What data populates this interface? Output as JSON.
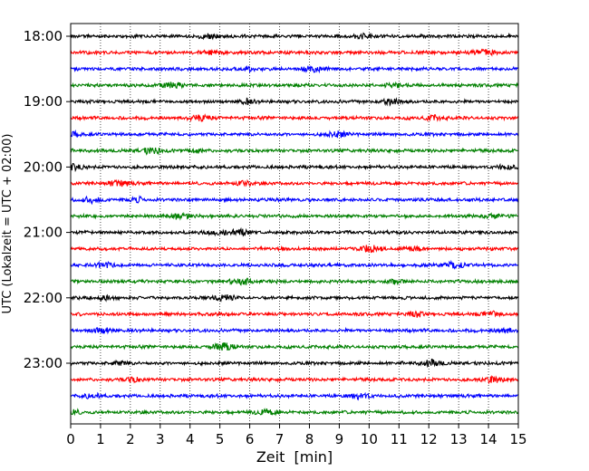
{
  "chart_data": {
    "type": "line",
    "title": "",
    "xlabel": "Zeit  [min]",
    "ylabel": "UTC (Lokalzeit = UTC + 02:00)",
    "xlim": [
      0,
      15
    ],
    "xticks": [
      "0",
      "1",
      "2",
      "3",
      "4",
      "5",
      "6",
      "7",
      "8",
      "9",
      "10",
      "11",
      "12",
      "13",
      "14",
      "15"
    ],
    "grid": "vertical dotted",
    "trace_interval_minutes": 15,
    "y_hour_labels": [
      "18:00",
      "19:00",
      "20:00",
      "21:00",
      "22:00",
      "23:00"
    ],
    "color_cycle": [
      "#000000",
      "#ff0000",
      "#0000ff",
      "#008000"
    ],
    "series": [
      {
        "start": "18:00",
        "color": "#000000"
      },
      {
        "start": "18:15",
        "color": "#ff0000"
      },
      {
        "start": "18:30",
        "color": "#0000ff"
      },
      {
        "start": "18:45",
        "color": "#008000"
      },
      {
        "start": "19:00",
        "color": "#000000"
      },
      {
        "start": "19:15",
        "color": "#ff0000"
      },
      {
        "start": "19:30",
        "color": "#0000ff"
      },
      {
        "start": "19:45",
        "color": "#008000"
      },
      {
        "start": "20:00",
        "color": "#000000"
      },
      {
        "start": "20:15",
        "color": "#ff0000"
      },
      {
        "start": "20:30",
        "color": "#0000ff"
      },
      {
        "start": "20:45",
        "color": "#008000"
      },
      {
        "start": "21:00",
        "color": "#000000"
      },
      {
        "start": "21:15",
        "color": "#ff0000"
      },
      {
        "start": "21:30",
        "color": "#0000ff"
      },
      {
        "start": "21:45",
        "color": "#008000"
      },
      {
        "start": "22:00",
        "color": "#000000"
      },
      {
        "start": "22:15",
        "color": "#ff0000"
      },
      {
        "start": "22:30",
        "color": "#0000ff"
      },
      {
        "start": "22:45",
        "color": "#008000"
      },
      {
        "start": "23:00",
        "color": "#000000"
      },
      {
        "start": "23:15",
        "color": "#ff0000"
      },
      {
        "start": "23:30",
        "color": "#0000ff"
      },
      {
        "start": "23:45",
        "color": "#008000"
      }
    ]
  }
}
